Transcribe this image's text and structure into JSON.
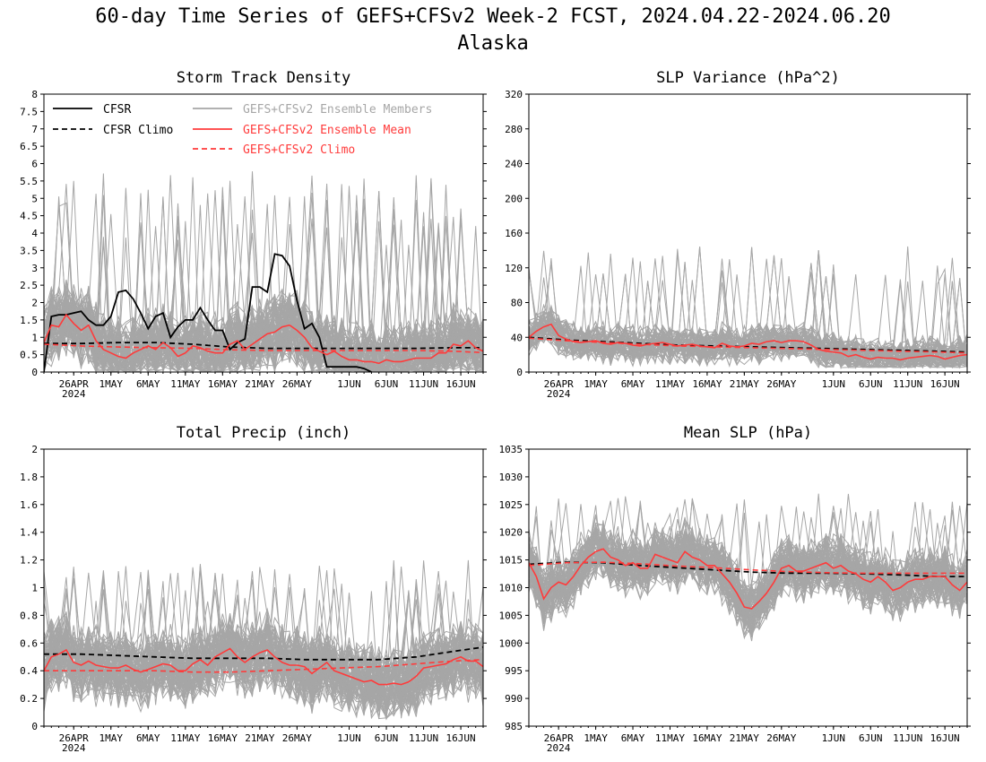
{
  "header": {
    "title": "60-day Time Series of GEFS+CFSv2 Week-2 FCST, 2024.04.22-2024.06.20",
    "subtitle": "Alaska"
  },
  "colors": {
    "cfsr": "#000000",
    "members": "#a6a6a6",
    "ens_mean": "#ff3b3b",
    "ens_climo": "#ff3b3b"
  },
  "legend": {
    "cfsr": "CFSR",
    "cfsr_climo": "CFSR Climo",
    "members": "GEFS+CFSv2 Ensemble Members",
    "ens_mean": "GEFS+CFSv2 Ensemble Mean",
    "ens_climo": "GEFS+CFSv2 Climo"
  },
  "x_axis": {
    "start_date": "2024-04-22",
    "days": 60,
    "tick_labels": [
      "26APR",
      "1MAY",
      "6MAY",
      "11MAY",
      "16MAY",
      "21MAY",
      "26MAY",
      "1JUN",
      "6JUN",
      "11JUN",
      "16JUN"
    ],
    "tick_days": [
      4,
      9,
      14,
      19,
      24,
      29,
      34,
      41,
      46,
      51,
      56
    ],
    "year_label": "2024"
  },
  "chart_data": [
    {
      "type": "line",
      "title": "Storm Track Density",
      "ylim": [
        0,
        8
      ],
      "y_ticks": [
        "0",
        "0.5",
        "1",
        "1.5",
        "2",
        "2.5",
        "3",
        "3.5",
        "4",
        "4.5",
        "5",
        "5.5",
        "6",
        "6.5",
        "7",
        "7.5",
        "8"
      ],
      "y_tick_values": [
        0,
        0.5,
        1,
        1.5,
        2,
        2.5,
        3,
        3.5,
        4,
        4.5,
        5,
        5.5,
        6,
        6.5,
        7,
        7.5,
        8
      ],
      "has_legend": true,
      "members": {
        "name": "GEFS+CFSv2 Ensemble Members",
        "count": 80,
        "center": 1.3,
        "spread": 0.9,
        "min": 0,
        "peak_max": 5.8
      },
      "series": [
        {
          "name": "CFSR",
          "x": [
            0,
            1,
            2,
            3,
            4,
            5,
            6,
            7,
            8,
            9,
            10,
            11,
            12,
            13,
            14,
            15,
            16,
            17,
            18,
            19,
            20,
            21,
            22,
            23,
            24,
            25,
            26,
            27,
            28,
            29,
            30,
            31,
            32,
            33,
            34,
            35,
            36,
            37,
            38,
            39,
            40,
            41,
            42,
            43,
            44
          ],
          "values": [
            0.0,
            1.6,
            1.65,
            1.65,
            1.7,
            1.75,
            1.5,
            1.35,
            1.35,
            1.6,
            2.3,
            2.35,
            2.1,
            1.7,
            1.25,
            1.6,
            1.7,
            1.0,
            1.3,
            1.5,
            1.5,
            1.85,
            1.5,
            1.2,
            1.2,
            0.65,
            0.85,
            0.95,
            2.45,
            2.45,
            2.3,
            3.4,
            3.35,
            3.05,
            2.05,
            1.25,
            1.4,
            1.0,
            0.15,
            0.15,
            0.15,
            0.15,
            0.15,
            0.1,
            0.0
          ]
        },
        {
          "name": "CFSR Climo",
          "x": [
            0,
            5,
            10,
            15,
            20,
            25,
            30,
            35,
            40,
            45,
            50,
            55,
            59
          ],
          "values": [
            0.82,
            0.82,
            0.85,
            0.85,
            0.8,
            0.72,
            0.68,
            0.68,
            0.68,
            0.68,
            0.68,
            0.7,
            0.7
          ]
        },
        {
          "name": "GEFS+CFSv2 Ensemble Mean",
          "x": [
            0,
            1,
            2,
            3,
            4,
            5,
            6,
            7,
            8,
            9,
            10,
            11,
            12,
            13,
            14,
            15,
            16,
            17,
            18,
            19,
            20,
            21,
            22,
            23,
            24,
            25,
            26,
            27,
            28,
            29,
            30,
            31,
            32,
            33,
            34,
            35,
            36,
            37,
            38,
            39,
            40,
            41,
            42,
            43,
            44,
            45,
            46,
            47,
            48,
            49,
            50,
            51,
            52,
            53,
            54,
            55,
            56,
            57,
            58,
            59
          ],
          "values": [
            0.85,
            1.35,
            1.3,
            1.65,
            1.4,
            1.2,
            1.35,
            0.9,
            0.65,
            0.55,
            0.45,
            0.4,
            0.55,
            0.65,
            0.75,
            0.65,
            0.85,
            0.7,
            0.45,
            0.55,
            0.75,
            0.7,
            0.6,
            0.55,
            0.55,
            0.8,
            0.9,
            0.65,
            0.8,
            0.95,
            1.1,
            1.15,
            1.3,
            1.35,
            1.2,
            1.0,
            0.7,
            0.6,
            0.5,
            0.6,
            0.45,
            0.35,
            0.35,
            0.3,
            0.3,
            0.25,
            0.35,
            0.3,
            0.3,
            0.35,
            0.4,
            0.4,
            0.4,
            0.55,
            0.55,
            0.8,
            0.75,
            0.9,
            0.7,
            0.6
          ]
        },
        {
          "name": "GEFS+CFSv2 Climo",
          "x": [
            0,
            5,
            10,
            15,
            20,
            25,
            30,
            35,
            40,
            45,
            50,
            55,
            59
          ],
          "values": [
            0.8,
            0.75,
            0.72,
            0.7,
            0.68,
            0.64,
            0.62,
            0.62,
            0.62,
            0.62,
            0.62,
            0.6,
            0.56
          ]
        }
      ]
    },
    {
      "type": "line",
      "title": "SLP Variance (hPa^2)",
      "ylim": [
        0,
        320
      ],
      "y_ticks": [
        "0",
        "40",
        "80",
        "120",
        "160",
        "200",
        "240",
        "280",
        "320"
      ],
      "y_tick_values": [
        0,
        40,
        80,
        120,
        160,
        200,
        240,
        280,
        320
      ],
      "has_legend": false,
      "members": {
        "name": "GEFS+CFSv2 Ensemble Members",
        "count": 80,
        "center": 30,
        "spread": 18,
        "min": 5,
        "peak_max": 145
      },
      "series": [
        {
          "name": "CFSR Climo",
          "x": [
            0,
            5,
            10,
            15,
            20,
            25,
            30,
            35,
            40,
            45,
            50,
            55,
            59
          ],
          "values": [
            40,
            37,
            35,
            33,
            31,
            30,
            29,
            28,
            27,
            26,
            25,
            24,
            23
          ]
        },
        {
          "name": "GEFS+CFSv2 Ensemble Mean",
          "x": [
            0,
            1,
            2,
            3,
            4,
            5,
            6,
            7,
            8,
            9,
            10,
            11,
            12,
            13,
            14,
            15,
            16,
            17,
            18,
            19,
            20,
            21,
            22,
            23,
            24,
            25,
            26,
            27,
            28,
            29,
            30,
            31,
            32,
            33,
            34,
            35,
            36,
            37,
            38,
            39,
            40,
            41,
            42,
            43,
            44,
            45,
            46,
            47,
            48,
            49,
            50,
            51,
            52,
            53,
            54,
            55,
            56,
            57,
            58,
            59
          ],
          "values": [
            40,
            47,
            52,
            55,
            42,
            38,
            35,
            34,
            35,
            36,
            33,
            32,
            34,
            33,
            31,
            30,
            32,
            33,
            34,
            32,
            30,
            31,
            32,
            30,
            29,
            28,
            33,
            30,
            29,
            30,
            33,
            32,
            35,
            36,
            34,
            36,
            36,
            35,
            31,
            26,
            24,
            23,
            22,
            18,
            20,
            17,
            15,
            17,
            16,
            16,
            14,
            16,
            17,
            18,
            19,
            18,
            15,
            17,
            19,
            20
          ]
        },
        {
          "name": "GEFS+CFSv2 Climo",
          "x": [
            0,
            5,
            10,
            15,
            20,
            25,
            30,
            35,
            40,
            45,
            50,
            55,
            59
          ],
          "values": [
            39,
            36,
            34,
            32,
            30,
            29,
            28,
            27,
            26,
            25,
            24,
            23,
            22
          ]
        }
      ]
    },
    {
      "type": "line",
      "title": "Total Precip (inch)",
      "ylim": [
        0,
        2
      ],
      "y_ticks": [
        "0",
        "0.2",
        "0.4",
        "0.6",
        "0.8",
        "1",
        "1.2",
        "1.4",
        "1.6",
        "1.8",
        "2"
      ],
      "y_tick_values": [
        0,
        0.2,
        0.4,
        0.6,
        0.8,
        1.0,
        1.2,
        1.4,
        1.6,
        1.8,
        2.0
      ],
      "has_legend": false,
      "members": {
        "name": "GEFS+CFSv2 Ensemble Members",
        "count": 80,
        "center": 0.45,
        "spread": 0.22,
        "min": 0.05,
        "peak_max": 1.2
      },
      "series": [
        {
          "name": "CFSR Climo",
          "x": [
            0,
            5,
            10,
            15,
            20,
            25,
            30,
            35,
            40,
            45,
            50,
            55,
            59
          ],
          "values": [
            0.52,
            0.52,
            0.51,
            0.5,
            0.49,
            0.49,
            0.49,
            0.48,
            0.48,
            0.48,
            0.5,
            0.54,
            0.57
          ]
        },
        {
          "name": "GEFS+CFSv2 Ensemble Mean",
          "x": [
            0,
            1,
            2,
            3,
            4,
            5,
            6,
            7,
            8,
            9,
            10,
            11,
            12,
            13,
            14,
            15,
            16,
            17,
            18,
            19,
            20,
            21,
            22,
            23,
            24,
            25,
            26,
            27,
            28,
            29,
            30,
            31,
            32,
            33,
            34,
            35,
            36,
            37,
            38,
            39,
            40,
            41,
            42,
            43,
            44,
            45,
            46,
            47,
            48,
            49,
            50,
            51,
            52,
            53,
            54,
            55,
            56,
            57,
            58,
            59
          ],
          "values": [
            0.4,
            0.5,
            0.52,
            0.55,
            0.46,
            0.44,
            0.47,
            0.44,
            0.43,
            0.42,
            0.42,
            0.44,
            0.41,
            0.39,
            0.41,
            0.43,
            0.45,
            0.44,
            0.4,
            0.4,
            0.45,
            0.48,
            0.44,
            0.5,
            0.53,
            0.56,
            0.5,
            0.46,
            0.5,
            0.53,
            0.55,
            0.5,
            0.46,
            0.44,
            0.44,
            0.43,
            0.38,
            0.42,
            0.46,
            0.4,
            0.38,
            0.36,
            0.34,
            0.32,
            0.33,
            0.3,
            0.3,
            0.31,
            0.3,
            0.32,
            0.36,
            0.42,
            0.43,
            0.44,
            0.45,
            0.48,
            0.5,
            0.47,
            0.47,
            0.43
          ]
        },
        {
          "name": "GEFS+CFSv2 Climo",
          "x": [
            0,
            5,
            10,
            15,
            20,
            25,
            30,
            35,
            40,
            45,
            50,
            55,
            59
          ],
          "values": [
            0.4,
            0.4,
            0.4,
            0.4,
            0.39,
            0.39,
            0.4,
            0.41,
            0.42,
            0.43,
            0.45,
            0.47,
            0.48
          ]
        }
      ]
    },
    {
      "type": "line",
      "title": "Mean SLP (hPa)",
      "ylim": [
        985,
        1035
      ],
      "y_ticks": [
        "985",
        "990",
        "995",
        "1000",
        "1005",
        "1010",
        "1015",
        "1020",
        "1025",
        "1030",
        "1035"
      ],
      "y_tick_values": [
        985,
        990,
        995,
        1000,
        1005,
        1010,
        1015,
        1020,
        1025,
        1030,
        1035
      ],
      "has_legend": false,
      "members": {
        "name": "GEFS+CFSv2 Ensemble Members",
        "count": 80,
        "center": 1013,
        "spread": 4.5,
        "min": 999,
        "peak_max": 1027
      },
      "series": [
        {
          "name": "CFSR Climo",
          "x": [
            0,
            5,
            10,
            15,
            20,
            25,
            30,
            35,
            40,
            45,
            50,
            55,
            59
          ],
          "values": [
            1014.2,
            1014.6,
            1014.5,
            1014.0,
            1013.6,
            1013.2,
            1012.8,
            1012.6,
            1012.6,
            1012.5,
            1012.3,
            1012.0,
            1012.0
          ]
        },
        {
          "name": "GEFS+CFSv2 Ensemble Mean",
          "x": [
            0,
            1,
            2,
            3,
            4,
            5,
            6,
            7,
            8,
            9,
            10,
            11,
            12,
            13,
            14,
            15,
            16,
            17,
            18,
            19,
            20,
            21,
            22,
            23,
            24,
            25,
            26,
            27,
            28,
            29,
            30,
            31,
            32,
            33,
            34,
            35,
            36,
            37,
            38,
            39,
            40,
            41,
            42,
            43,
            44,
            45,
            46,
            47,
            48,
            49,
            50,
            51,
            52,
            53,
            54,
            55,
            56,
            57,
            58,
            59
          ],
          "values": [
            1014.5,
            1012.0,
            1008.0,
            1010.0,
            1011.0,
            1010.5,
            1012.0,
            1014.0,
            1015.5,
            1016.5,
            1017.0,
            1015.5,
            1015.0,
            1014.0,
            1014.5,
            1013.5,
            1013.5,
            1016.0,
            1015.5,
            1015.0,
            1014.5,
            1016.5,
            1015.5,
            1015.0,
            1014.0,
            1014.0,
            1012.5,
            1011.0,
            1009.0,
            1006.5,
            1006.2,
            1007.5,
            1009.0,
            1011.0,
            1013.5,
            1014.0,
            1013.0,
            1013.0,
            1013.5,
            1014.0,
            1014.5,
            1013.5,
            1014.0,
            1013.0,
            1012.5,
            1011.5,
            1011.0,
            1012.0,
            1011.0,
            1009.5,
            1010.0,
            1011.0,
            1011.5,
            1011.5,
            1012.0,
            1012.0,
            1012.0,
            1010.5,
            1009.5,
            1011.0
          ]
        },
        {
          "name": "GEFS+CFSv2 Climo",
          "x": [
            0,
            5,
            10,
            15,
            20,
            25,
            30,
            35,
            40,
            45,
            50,
            55,
            59
          ],
          "values": [
            1014.0,
            1014.5,
            1014.6,
            1014.3,
            1013.9,
            1013.6,
            1013.2,
            1012.9,
            1012.7,
            1012.6,
            1012.6,
            1012.6,
            1012.6
          ]
        }
      ]
    }
  ]
}
